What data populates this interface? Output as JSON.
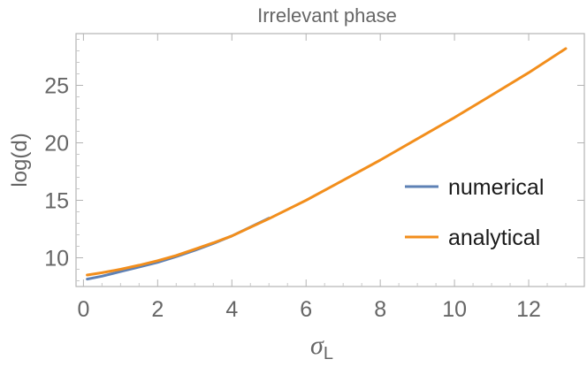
{
  "chart_data": {
    "type": "line",
    "title": "Irrelevant phase",
    "xlabel": "σ",
    "xlabel_subscript": "L",
    "ylabel": "log(d)",
    "xlim": [
      -0.2,
      13.5
    ],
    "ylim": [
      7.5,
      29.5
    ],
    "x_ticks": [
      0,
      2,
      4,
      6,
      8,
      10,
      12
    ],
    "y_ticks": [
      10,
      15,
      20,
      25
    ],
    "legend_position": "right",
    "series": [
      {
        "name": "numerical",
        "color": "#5e81b5",
        "x": [
          0.1,
          0.5,
          1,
          1.5,
          2,
          2.5,
          3,
          3.5,
          4,
          5
        ],
        "y": [
          8.15,
          8.4,
          8.8,
          9.2,
          9.6,
          10.1,
          10.65,
          11.25,
          11.9,
          13.45
        ]
      },
      {
        "name": "analytical",
        "color": "#f28e1c",
        "x": [
          0.1,
          0.5,
          1,
          1.5,
          2,
          2.5,
          3,
          3.5,
          4,
          5,
          6,
          7,
          8,
          9,
          10,
          11,
          12,
          13
        ],
        "y": [
          8.5,
          8.7,
          9.0,
          9.35,
          9.75,
          10.2,
          10.75,
          11.3,
          11.9,
          13.4,
          15.0,
          16.75,
          18.5,
          20.35,
          22.2,
          24.15,
          26.1,
          28.2
        ]
      }
    ],
    "grid": false
  }
}
